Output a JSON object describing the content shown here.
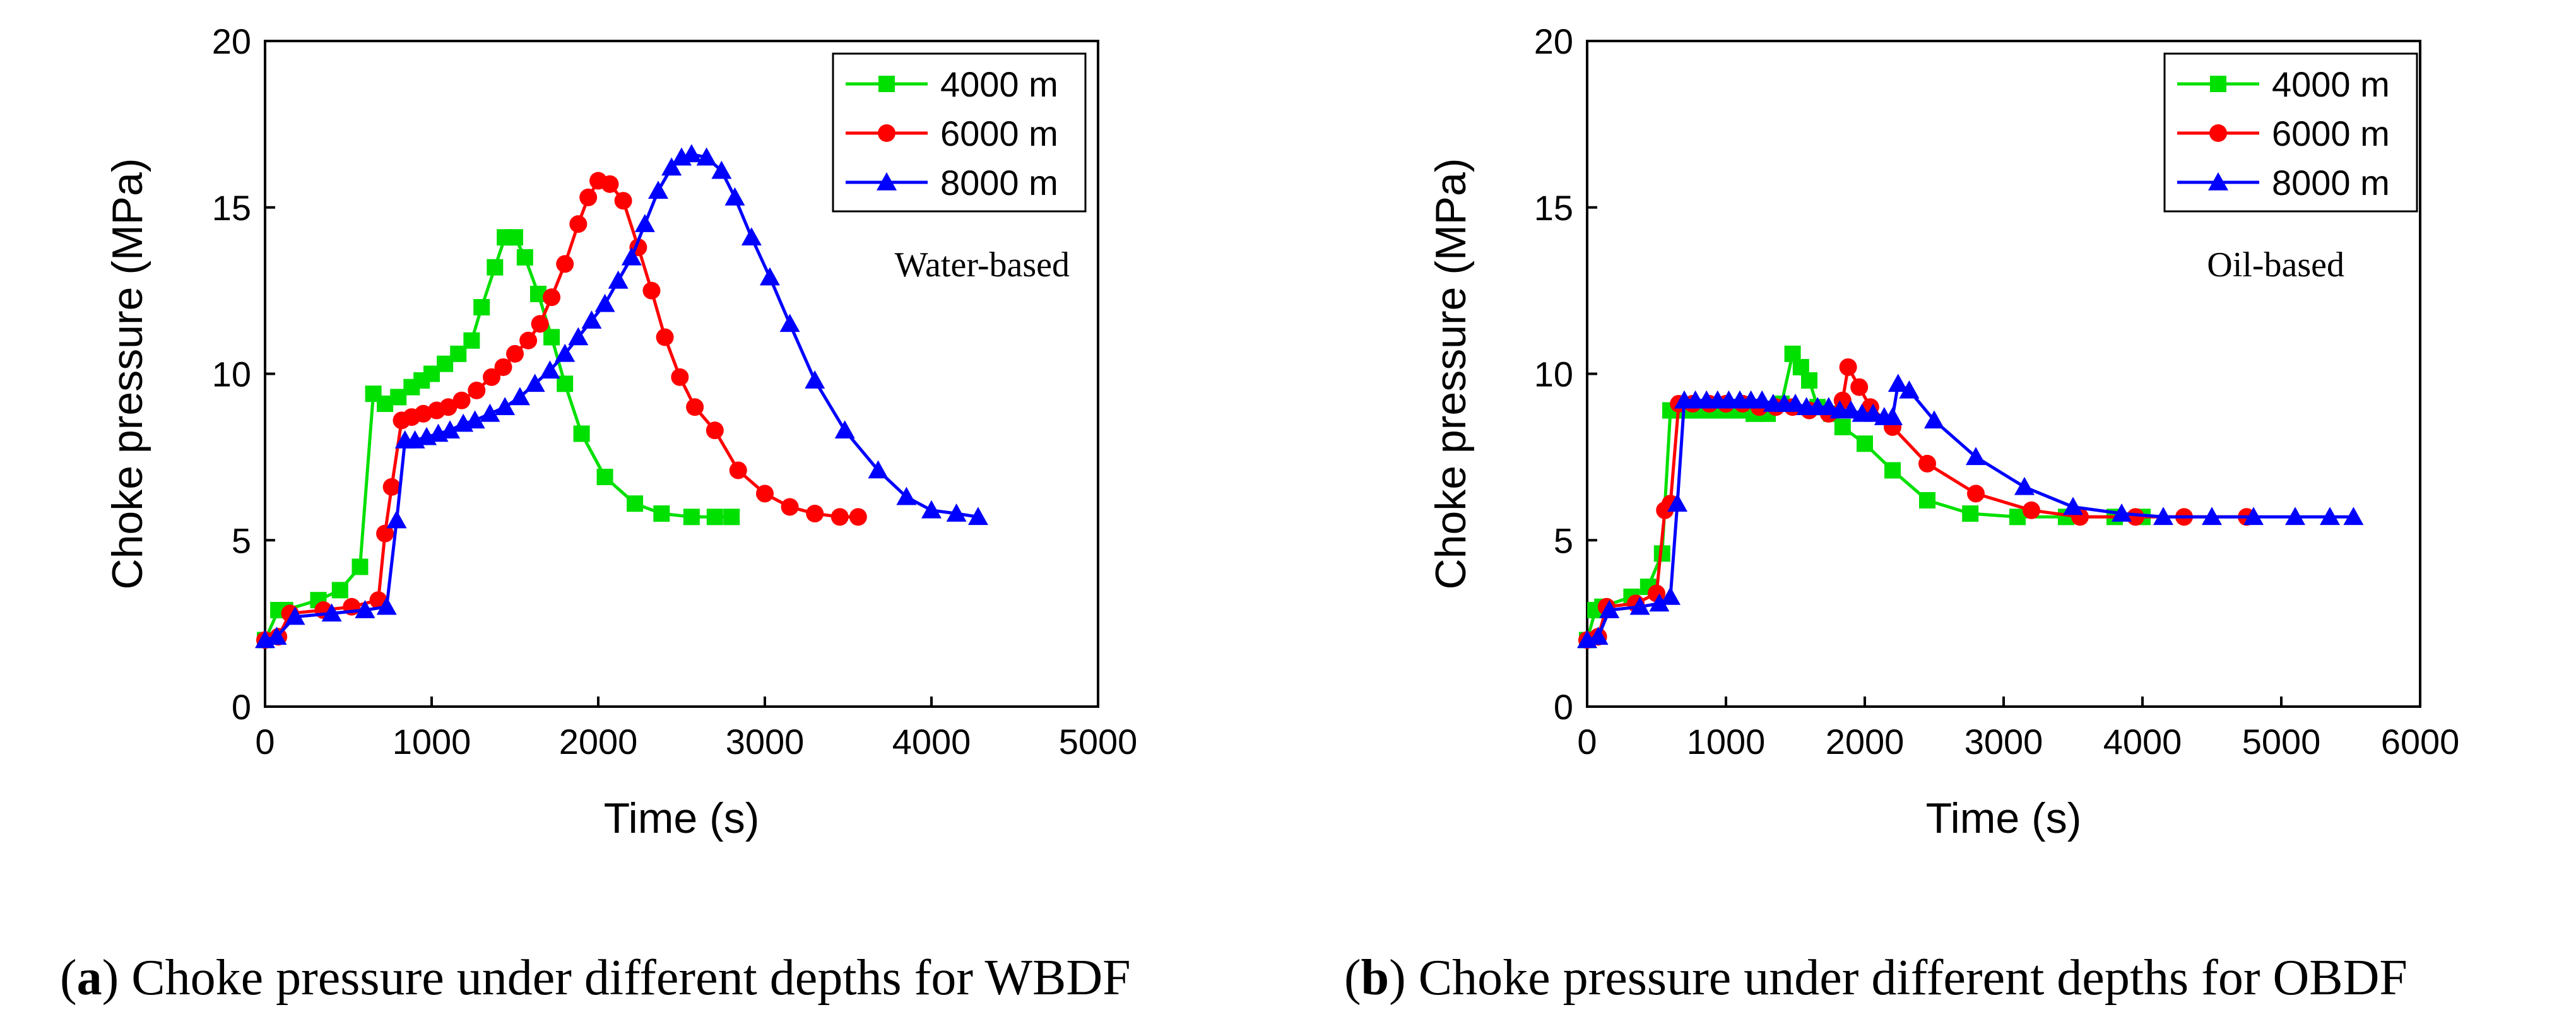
{
  "captions": [
    {
      "letter": "a",
      "text": "Choke pressure under different depths for WBDF"
    },
    {
      "letter": "b",
      "text": "Choke pressure under different depths for OBDF"
    }
  ],
  "chart_data": [
    {
      "type": "line",
      "panel": "a",
      "xlabel": "Time (s)",
      "ylabel": "Choke pressure (MPa)",
      "xlim": [
        0,
        5000
      ],
      "ylim": [
        0,
        20
      ],
      "xticks": [
        0,
        1000,
        2000,
        3000,
        4000,
        5000
      ],
      "yticks": [
        0,
        5,
        10,
        15,
        20
      ],
      "annotation": "Water-based",
      "legend_position": "top-right",
      "series": [
        {
          "name": "4000 m",
          "color": "#00e000",
          "marker": "square",
          "x": [
            0,
            80,
            120,
            320,
            450,
            570,
            650,
            720,
            800,
            880,
            940,
            1000,
            1080,
            1160,
            1240,
            1300,
            1380,
            1440,
            1500,
            1560,
            1640,
            1720,
            1800,
            1900,
            2040,
            2220,
            2380,
            2560,
            2700,
            2800
          ],
          "y": [
            2.0,
            2.9,
            2.9,
            3.2,
            3.5,
            4.2,
            9.4,
            9.1,
            9.3,
            9.6,
            9.8,
            10.0,
            10.3,
            10.6,
            11.0,
            12.0,
            13.2,
            14.1,
            14.1,
            13.5,
            12.4,
            11.1,
            9.7,
            8.2,
            6.9,
            6.1,
            5.8,
            5.7,
            5.7,
            5.7
          ]
        },
        {
          "name": "6000 m",
          "color": "#ff0000",
          "marker": "circle",
          "x": [
            0,
            80,
            150,
            350,
            520,
            680,
            720,
            760,
            820,
            880,
            950,
            1030,
            1100,
            1180,
            1270,
            1360,
            1430,
            1500,
            1580,
            1650,
            1720,
            1800,
            1880,
            1940,
            2000,
            2070,
            2150,
            2240,
            2320,
            2400,
            2490,
            2580,
            2700,
            2840,
            3000,
            3150,
            3300,
            3450,
            3560
          ],
          "y": [
            2.0,
            2.1,
            2.8,
            2.9,
            3.0,
            3.2,
            5.2,
            6.6,
            8.6,
            8.7,
            8.8,
            8.9,
            9.0,
            9.2,
            9.5,
            9.9,
            10.2,
            10.6,
            11.0,
            11.5,
            12.3,
            13.3,
            14.5,
            15.3,
            15.8,
            15.7,
            15.2,
            13.8,
            12.5,
            11.1,
            9.9,
            9.0,
            8.3,
            7.1,
            6.4,
            6.0,
            5.8,
            5.7,
            5.7
          ]
        },
        {
          "name": "8000 m",
          "color": "#0000ff",
          "marker": "triangle",
          "x": [
            0,
            70,
            180,
            400,
            600,
            730,
            790,
            840,
            900,
            970,
            1040,
            1110,
            1190,
            1260,
            1350,
            1440,
            1530,
            1620,
            1710,
            1800,
            1880,
            1960,
            2040,
            2120,
            2200,
            2280,
            2360,
            2440,
            2500,
            2560,
            2650,
            2740,
            2820,
            2920,
            3030,
            3150,
            3300,
            3480,
            3680,
            3850,
            4000,
            4150,
            4280
          ],
          "y": [
            2.0,
            2.1,
            2.7,
            2.8,
            2.9,
            3.0,
            5.6,
            8.0,
            8.0,
            8.1,
            8.2,
            8.3,
            8.5,
            8.6,
            8.8,
            9.0,
            9.3,
            9.7,
            10.1,
            10.6,
            11.1,
            11.6,
            12.1,
            12.8,
            13.5,
            14.5,
            15.5,
            16.2,
            16.5,
            16.6,
            16.5,
            16.1,
            15.3,
            14.1,
            12.9,
            11.5,
            9.8,
            8.3,
            7.1,
            6.3,
            5.9,
            5.8,
            5.7
          ]
        }
      ]
    },
    {
      "type": "line",
      "panel": "b",
      "xlabel": "Time (s)",
      "ylabel": "Choke pressure (MPa)",
      "xlim": [
        0,
        6000
      ],
      "ylim": [
        0,
        20
      ],
      "xticks": [
        0,
        1000,
        2000,
        3000,
        4000,
        5000,
        6000
      ],
      "yticks": [
        0,
        5,
        10,
        15,
        20
      ],
      "annotation": "Oil-based",
      "legend_position": "top-right",
      "series": [
        {
          "name": "4000 m",
          "color": "#00e000",
          "marker": "square",
          "x": [
            0,
            60,
            110,
            320,
            440,
            540,
            600,
            700,
            800,
            900,
            1000,
            1100,
            1200,
            1300,
            1400,
            1480,
            1540,
            1600,
            1660,
            1760,
            1840,
            2000,
            2200,
            2450,
            2760,
            3100,
            3450,
            3800,
            4000
          ],
          "y": [
            2.0,
            2.9,
            3.0,
            3.3,
            3.6,
            4.6,
            8.9,
            8.9,
            8.9,
            8.9,
            8.9,
            8.9,
            8.8,
            8.8,
            9.1,
            10.6,
            10.2,
            9.8,
            9.0,
            8.8,
            8.4,
            7.9,
            7.1,
            6.2,
            5.8,
            5.7,
            5.7,
            5.7,
            5.7
          ]
        },
        {
          "name": "6000 m",
          "color": "#ff0000",
          "marker": "circle",
          "x": [
            0,
            80,
            140,
            350,
            500,
            560,
            600,
            660,
            760,
            880,
            1000,
            1120,
            1240,
            1360,
            1480,
            1600,
            1740,
            1840,
            1880,
            1960,
            2040,
            2200,
            2450,
            2800,
            3200,
            3550,
            3950,
            4300,
            4750
          ],
          "y": [
            2.0,
            2.1,
            3.0,
            3.1,
            3.4,
            5.9,
            6.1,
            9.1,
            9.1,
            9.1,
            9.1,
            9.1,
            9.0,
            9.0,
            9.0,
            8.9,
            8.8,
            9.2,
            10.2,
            9.6,
            9.0,
            8.4,
            7.3,
            6.4,
            5.9,
            5.7,
            5.7,
            5.7,
            5.7
          ]
        },
        {
          "name": "8000 m",
          "color": "#0000ff",
          "marker": "triangle",
          "x": [
            0,
            80,
            160,
            380,
            520,
            600,
            650,
            700,
            780,
            860,
            940,
            1020,
            1100,
            1180,
            1260,
            1340,
            1420,
            1500,
            1580,
            1660,
            1740,
            1820,
            1900,
            1980,
            2060,
            2140,
            2200,
            2240,
            2320,
            2500,
            2800,
            3150,
            3500,
            3850,
            4150,
            4500,
            4800,
            5100,
            5350,
            5520
          ],
          "y": [
            2.0,
            2.1,
            2.9,
            3.0,
            3.1,
            3.3,
            6.1,
            9.2,
            9.2,
            9.2,
            9.2,
            9.2,
            9.2,
            9.2,
            9.2,
            9.1,
            9.1,
            9.1,
            9.0,
            9.0,
            9.0,
            8.9,
            8.9,
            8.8,
            8.8,
            8.7,
            8.7,
            9.7,
            9.5,
            8.6,
            7.5,
            6.6,
            6.0,
            5.8,
            5.7,
            5.7,
            5.7,
            5.7,
            5.7,
            5.7
          ]
        }
      ]
    }
  ]
}
